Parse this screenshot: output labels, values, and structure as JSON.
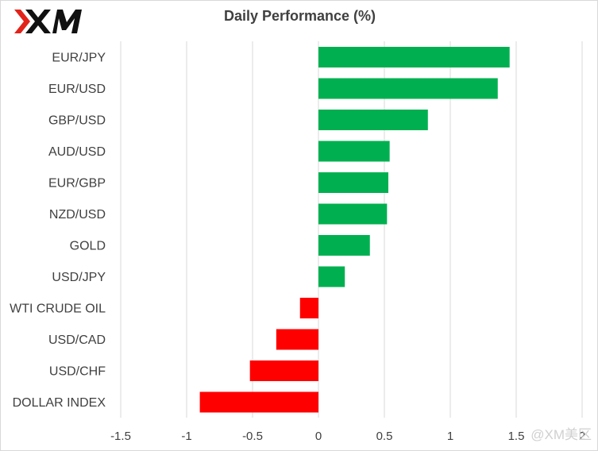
{
  "header": {
    "logo_text": "XM",
    "title": "Daily Performance  (%)"
  },
  "watermark": "@XM美区",
  "colors": {
    "positive": "#00b050",
    "negative": "#ff0000",
    "grid": "#d9d9d9",
    "text": "#404040"
  },
  "chart_data": {
    "type": "bar",
    "orientation": "horizontal",
    "title": "Daily Performance  (%)",
    "categories": [
      "EUR/JPY",
      "EUR/USD",
      "GBP/USD",
      "AUD/USD",
      "EUR/GBP",
      "NZD/USD",
      "GOLD",
      "USD/JPY",
      "WTI CRUDE OIL",
      "USD/CAD",
      "USD/CHF",
      "DOLLAR INDEX"
    ],
    "values": [
      1.45,
      1.36,
      0.83,
      0.54,
      0.53,
      0.52,
      0.39,
      0.2,
      -0.14,
      -0.32,
      -0.52,
      -0.9
    ],
    "xlim": [
      -1.5,
      2
    ],
    "xticks": [
      "-1.5",
      "-1",
      "-0.5",
      "0",
      "0.5",
      "1",
      "1.5",
      "2"
    ],
    "xtick_values": [
      -1.5,
      -1,
      -0.5,
      0,
      0.5,
      1,
      1.5,
      2
    ],
    "grid": true,
    "legend": "none"
  }
}
